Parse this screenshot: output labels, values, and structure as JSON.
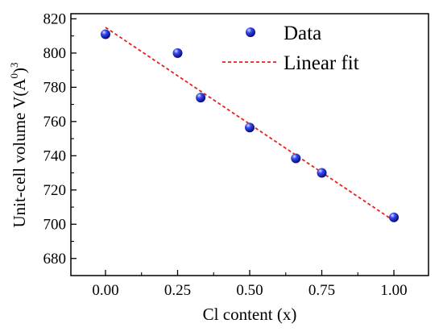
{
  "chart_data": {
    "type": "scatter",
    "xlabel": "Cl content (x)",
    "ylabel": "Unit-cell volume V(A",
    "ylabel_sup": "0",
    "ylabel_tail": ")",
    "ylabel_sup2": "3",
    "xlim": [
      -0.12,
      1.12
    ],
    "ylim": [
      670,
      823
    ],
    "x_ticks": [
      "0.00",
      "0.25",
      "0.50",
      "0.75",
      "1.00"
    ],
    "x_tick_values": [
      0,
      0.25,
      0.5,
      0.75,
      1.0
    ],
    "y_ticks": [
      "680",
      "700",
      "720",
      "740",
      "760",
      "780",
      "800",
      "820"
    ],
    "y_tick_values": [
      680,
      700,
      720,
      740,
      760,
      780,
      800,
      820
    ],
    "grid": false,
    "legend_position": "top-right",
    "series": [
      {
        "name": "Data",
        "type": "scatter",
        "color": "#1a1adc",
        "x": [
          0,
          0.25,
          0.33,
          0.5,
          0.66,
          0.75,
          1.0
        ],
        "y": [
          811,
          800,
          774,
          756.5,
          738.5,
          730,
          704
        ]
      },
      {
        "name": "Linear fit",
        "type": "line",
        "style": "dashed",
        "color": "#e8201c",
        "x": [
          0,
          1.0
        ],
        "y": [
          815,
          702
        ]
      }
    ]
  }
}
